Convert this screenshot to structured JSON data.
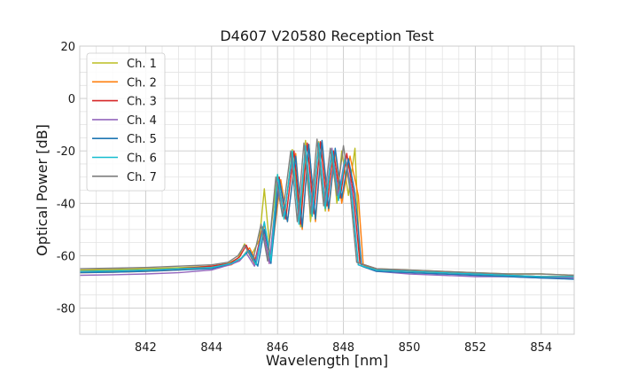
{
  "chart_data": {
    "type": "line",
    "title": "D4607 V20580 Reception Test",
    "xlabel": "Wavelength [nm]",
    "ylabel": "Optical Power [dB]",
    "xlim": [
      840,
      855
    ],
    "ylim": [
      -90,
      20
    ],
    "x_ticks": [
      842,
      844,
      846,
      848,
      850,
      852,
      854
    ],
    "y_ticks": [
      -80,
      -60,
      -40,
      -20,
      0,
      20
    ],
    "x_minor_step": 0.5,
    "y_minor_step": 5,
    "grid": true,
    "legend_position": "top-left",
    "series": [
      {
        "name": "Ch. 1",
        "color": "#bcbd22",
        "x": [
          840,
          841,
          842,
          843,
          844,
          844.5,
          844.8,
          845.0,
          845.2,
          845.45,
          845.6,
          845.75,
          846.0,
          846.2,
          846.45,
          846.7,
          846.85,
          847.0,
          847.25,
          847.45,
          847.65,
          847.8,
          847.95,
          848.15,
          848.35,
          848.5,
          849,
          850,
          851,
          852,
          853,
          854,
          855
        ],
        "y": [
          -65.5,
          -65.3,
          -65.0,
          -64.6,
          -64.0,
          -63.0,
          -61.0,
          -55.5,
          -60.0,
          -54.0,
          -34.5,
          -55.0,
          -29.0,
          -46.0,
          -19.5,
          -49.0,
          -16.0,
          -47.0,
          -16.5,
          -43.0,
          -19.0,
          -40.0,
          -20.0,
          -37.0,
          -19.0,
          -63.0,
          -65.0,
          -65.5,
          -66.0,
          -66.5,
          -67.0,
          -67.0,
          -67.5
        ]
      },
      {
        "name": "Ch. 2",
        "color": "#ff7f0e",
        "x": [
          840,
          841,
          842,
          843,
          844,
          844.6,
          844.9,
          845.15,
          845.35,
          845.6,
          845.8,
          846.1,
          846.3,
          846.55,
          846.75,
          846.95,
          847.15,
          847.35,
          847.55,
          847.75,
          847.95,
          848.2,
          848.45,
          848.6,
          849,
          850,
          851,
          852,
          853,
          854,
          855
        ],
        "y": [
          -66.5,
          -66.3,
          -66.0,
          -65.5,
          -64.5,
          -63.5,
          -61.0,
          -57.0,
          -62.0,
          -48.0,
          -61.0,
          -31.0,
          -47.0,
          -21.0,
          -50.0,
          -17.5,
          -47.0,
          -17.0,
          -43.0,
          -20.0,
          -40.0,
          -22.0,
          -37.0,
          -63.5,
          -65.5,
          -66.0,
          -66.5,
          -67.0,
          -67.5,
          -68.0,
          -68.0
        ]
      },
      {
        "name": "Ch. 3",
        "color": "#d62728",
        "x": [
          840,
          841,
          842,
          843,
          844,
          844.55,
          844.85,
          845.05,
          845.3,
          845.55,
          845.75,
          846.05,
          846.25,
          846.5,
          846.7,
          846.9,
          847.1,
          847.3,
          847.5,
          847.7,
          847.9,
          848.1,
          848.3,
          848.5,
          849,
          850,
          851,
          852,
          853,
          854,
          855
        ],
        "y": [
          -66.0,
          -65.8,
          -65.5,
          -65.0,
          -64.0,
          -63.0,
          -60.5,
          -56.0,
          -63.0,
          -49.0,
          -63.0,
          -30.0,
          -46.0,
          -20.0,
          -48.0,
          -17.0,
          -44.0,
          -16.5,
          -41.0,
          -20.0,
          -38.0,
          -21.0,
          -36.0,
          -63.0,
          -65.0,
          -66.0,
          -66.5,
          -67.0,
          -67.5,
          -68.0,
          -68.0
        ]
      },
      {
        "name": "Ch. 4",
        "color": "#9467bd",
        "x": [
          840,
          841,
          842,
          843,
          844,
          844.55,
          844.85,
          845.05,
          845.3,
          845.55,
          845.75,
          846.0,
          846.2,
          846.45,
          846.65,
          846.85,
          847.05,
          847.25,
          847.45,
          847.65,
          847.85,
          848.05,
          848.25,
          848.45,
          849,
          850,
          851,
          852,
          853,
          854,
          855
        ],
        "y": [
          -67.5,
          -67.3,
          -67.0,
          -66.5,
          -65.5,
          -63.5,
          -62.0,
          -59.0,
          -64.0,
          -50.0,
          -63.0,
          -32.0,
          -45.0,
          -22.0,
          -46.0,
          -18.0,
          -42.0,
          -17.0,
          -40.0,
          -19.0,
          -37.0,
          -22.0,
          -35.0,
          -63.5,
          -66.0,
          -67.0,
          -67.5,
          -68.0,
          -68.0,
          -68.5,
          -68.5
        ]
      },
      {
        "name": "Ch. 5",
        "color": "#1f77b4",
        "x": [
          840,
          841,
          842,
          843,
          844,
          844.6,
          844.9,
          845.15,
          845.4,
          845.6,
          845.8,
          846.05,
          846.3,
          846.55,
          846.75,
          846.95,
          847.15,
          847.35,
          847.55,
          847.75,
          847.95,
          848.15,
          848.35,
          848.55,
          849,
          850,
          851,
          852,
          853,
          854,
          855
        ],
        "y": [
          -66.5,
          -66.3,
          -66.0,
          -65.5,
          -65.0,
          -63.0,
          -61.0,
          -58.0,
          -64.0,
          -50.0,
          -63.0,
          -31.0,
          -47.0,
          -22.0,
          -49.0,
          -17.5,
          -46.0,
          -16.0,
          -42.0,
          -19.0,
          -38.0,
          -23.0,
          -36.0,
          -64.0,
          -66.0,
          -66.5,
          -67.0,
          -67.5,
          -68.0,
          -68.5,
          -69.0
        ]
      },
      {
        "name": "Ch. 6",
        "color": "#17becf",
        "x": [
          840,
          841,
          842,
          843,
          844,
          844.6,
          844.9,
          845.1,
          845.35,
          845.6,
          845.8,
          846.0,
          846.2,
          846.45,
          846.65,
          846.85,
          847.05,
          847.25,
          847.45,
          847.65,
          847.85,
          848.05,
          848.25,
          848.45,
          849,
          850,
          851,
          852,
          853,
          854,
          855
        ],
        "y": [
          -66.0,
          -65.8,
          -65.5,
          -65.0,
          -64.5,
          -63.0,
          -61.0,
          -58.0,
          -63.5,
          -47.0,
          -62.0,
          -29.0,
          -46.0,
          -20.0,
          -48.0,
          -18.0,
          -45.0,
          -17.0,
          -42.0,
          -20.0,
          -39.0,
          -23.0,
          -37.0,
          -63.5,
          -65.5,
          -66.0,
          -66.5,
          -67.0,
          -67.5,
          -68.0,
          -68.0
        ]
      },
      {
        "name": "Ch. 7",
        "color": "#7f7f7f",
        "x": [
          840,
          841,
          842,
          843,
          844,
          844.5,
          844.8,
          845.0,
          845.25,
          845.5,
          845.7,
          845.95,
          846.15,
          846.4,
          846.6,
          846.8,
          847.0,
          847.2,
          847.4,
          847.6,
          847.8,
          848.0,
          848.2,
          848.4,
          849,
          850,
          851,
          852,
          853,
          854,
          855
        ],
        "y": [
          -65.0,
          -64.8,
          -64.5,
          -64.0,
          -63.5,
          -62.5,
          -60.0,
          -56.0,
          -62.0,
          -48.0,
          -62.0,
          -30.0,
          -45.0,
          -20.0,
          -47.0,
          -17.0,
          -44.0,
          -15.5,
          -41.0,
          -19.0,
          -37.0,
          -18.0,
          -35.0,
          -62.5,
          -65.0,
          -65.5,
          -66.0,
          -66.5,
          -67.0,
          -67.0,
          -67.5
        ]
      }
    ]
  }
}
